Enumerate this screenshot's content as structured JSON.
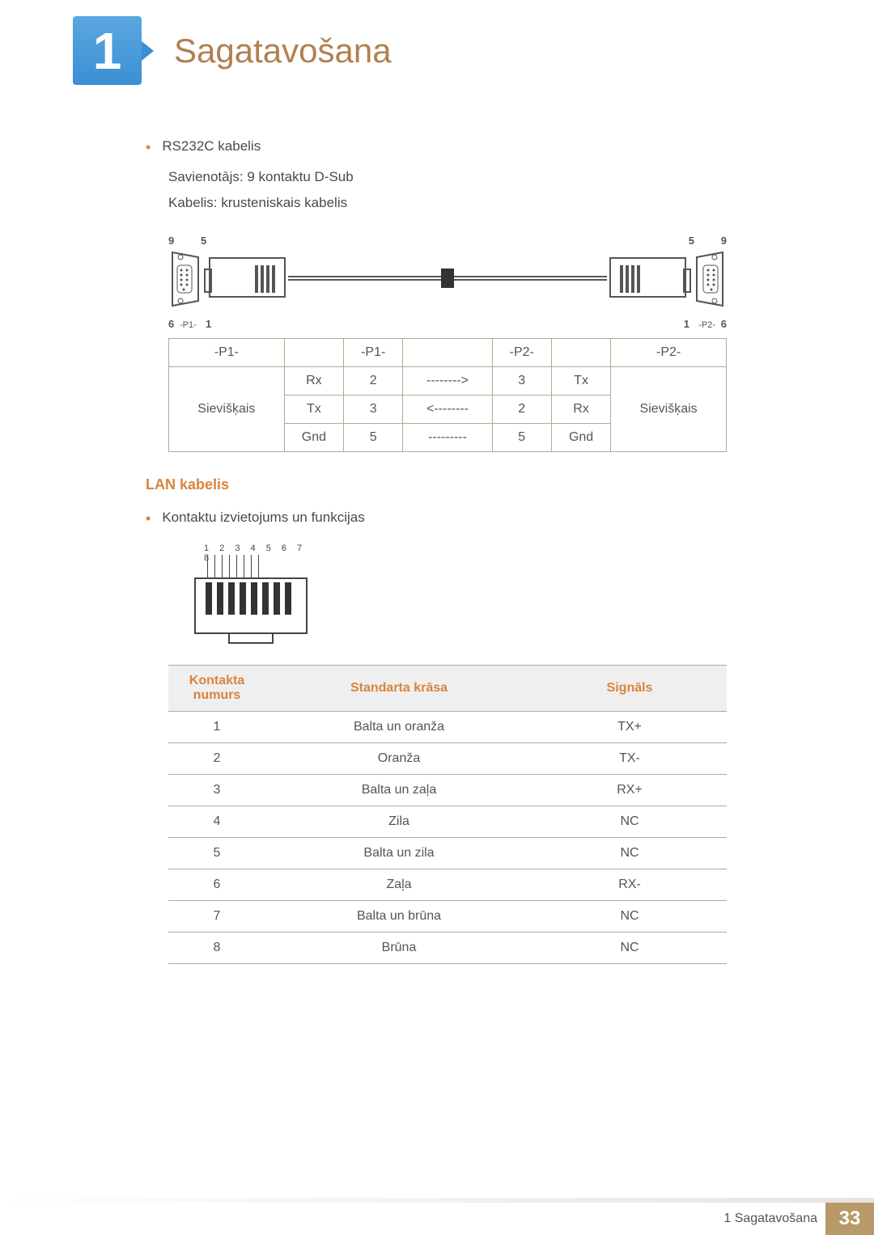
{
  "chapter": {
    "number": "1",
    "title": "Sagatavošana"
  },
  "rs232": {
    "bullet": "RS232C kabelis",
    "line1": "Savienotājs: 9 kontaktu D-Sub",
    "line2": "Kabelis: krusteniskais kabelis",
    "pins": {
      "tl": "9",
      "tr_l": "5",
      "tr_r": "5",
      "trr": "9",
      "bl": "6",
      "br_l": "1",
      "br_r": "1",
      "brr": "6",
      "p1": "-P1-",
      "p2": "-P2-"
    }
  },
  "pinout": {
    "headers": [
      "-P1-",
      "",
      "-P1-",
      "",
      "-P2-",
      "",
      "-P2-"
    ],
    "rows": [
      [
        "",
        "Rx",
        "2",
        "-------->",
        "3",
        "Tx",
        ""
      ],
      [
        "Sievišķais",
        "Tx",
        "3",
        "<--------",
        "2",
        "Rx",
        "Sievišķais"
      ],
      [
        "",
        "Gnd",
        "5",
        "---------",
        "5",
        "Gnd",
        ""
      ]
    ]
  },
  "lan": {
    "title": "LAN kabelis",
    "bullet": "Kontaktu izvietojums un funkcijas",
    "rj45_nums": "1 2 3 4 5 6 7 8",
    "headers": [
      "Kontakta numurs",
      "Standarta krāsa",
      "Signāls"
    ],
    "rows": [
      [
        "1",
        "Balta un oranža",
        "TX+"
      ],
      [
        "2",
        "Oranža",
        "TX-"
      ],
      [
        "3",
        "Balta un zaļa",
        "RX+"
      ],
      [
        "4",
        "Zila",
        "NC"
      ],
      [
        "5",
        "Balta un zila",
        "NC"
      ],
      [
        "6",
        "Zaļa",
        "RX-"
      ],
      [
        "7",
        "Balta un brūna",
        "NC"
      ],
      [
        "8",
        "Brūna",
        "NC"
      ]
    ]
  },
  "footer": {
    "text": "1 Sagatavošana",
    "page": "33"
  },
  "colors": {
    "accent": "#d9843b",
    "brown": "#b08050",
    "border": "#b8a890",
    "badge1": "#5aa8e0",
    "badge2": "#3b8fd4",
    "footer_bg": "#b89a6a"
  }
}
